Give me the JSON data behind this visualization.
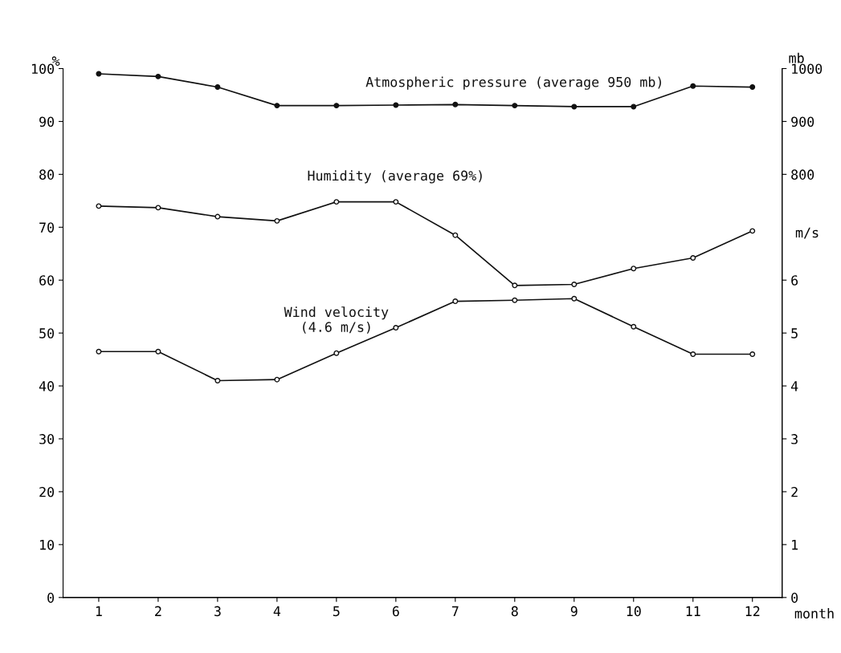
{
  "chart_data": {
    "type": "line",
    "categories": [
      "1",
      "2",
      "3",
      "4",
      "5",
      "6",
      "7",
      "8",
      "9",
      "10",
      "11",
      "12"
    ],
    "xlabel": "month",
    "ylabel": "%",
    "y2label": "m/s",
    "y3label": "mb",
    "ylim": [
      0,
      100
    ],
    "yticks": [
      0,
      10,
      20,
      30,
      40,
      50,
      60,
      70,
      80,
      90,
      100
    ],
    "y2lim": [
      0,
      10
    ],
    "y2ticks": [
      0,
      1,
      2,
      3,
      4,
      5,
      6
    ],
    "y3lim": [
      0,
      1000
    ],
    "y3ticks": [
      800,
      900,
      1000
    ],
    "marker": "circle",
    "line_style": "solid",
    "grid": false,
    "legend": false,
    "series": [
      {
        "name": "Atmospheric pressure (average 950 mb)",
        "color": "#111111",
        "axis": "y3",
        "values": [
          990,
          985,
          965,
          930,
          930,
          931,
          932,
          930,
          928,
          928,
          967,
          965
        ]
      },
      {
        "name": "Humidity (average 69%)",
        "color": "#111111",
        "axis": "y",
        "values": [
          74,
          73.7,
          72,
          71.2,
          74.8,
          74.8,
          68.5,
          59,
          59.2,
          62.2,
          64.2,
          69.3
        ]
      },
      {
        "name": "Wind velocity\n(4.6 m/s)",
        "color": "#111111",
        "axis": "y2",
        "values": [
          4.65,
          4.65,
          4.1,
          4.12,
          4.62,
          5.1,
          5.6,
          5.62,
          5.65,
          5.12,
          4.6,
          4.6
        ]
      }
    ]
  }
}
